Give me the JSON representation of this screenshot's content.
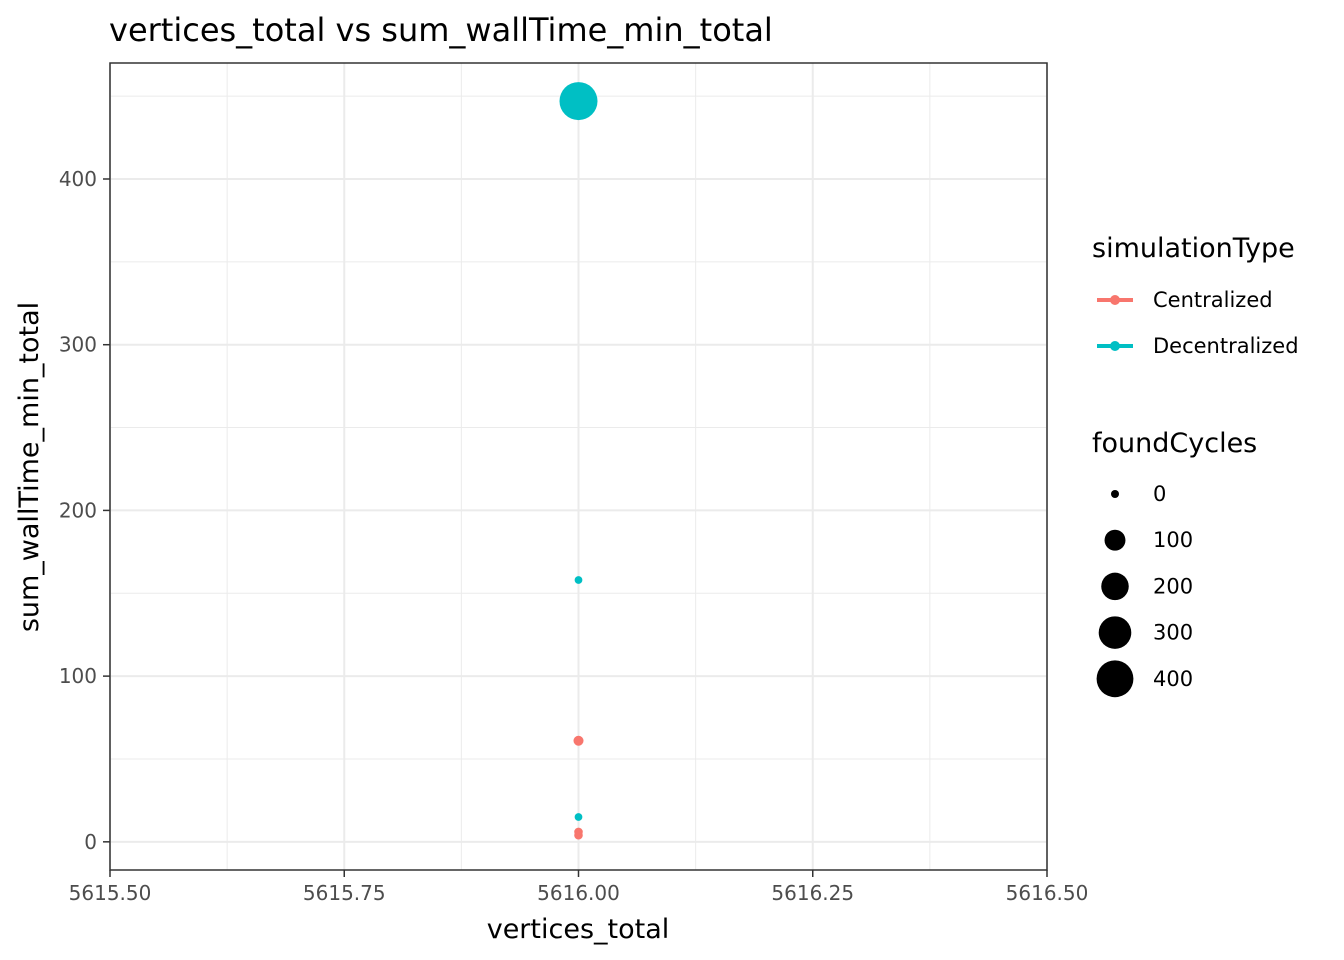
{
  "chart_data": {
    "type": "scatter",
    "title": "vertices_total  vs  sum_wallTime_min_total",
    "xlabel": "vertices_total",
    "ylabel": "sum_wallTime_min_total",
    "xlim": [
      5615.5,
      5616.5
    ],
    "ylim": [
      -17,
      470
    ],
    "x_ticks": [
      5615.5,
      5615.75,
      5616.0,
      5616.25,
      5616.5
    ],
    "x_tick_labels": [
      "5615.50",
      "5615.75",
      "5616.00",
      "5616.25",
      "5616.50"
    ],
    "y_ticks": [
      0,
      100,
      200,
      300,
      400
    ],
    "y_tick_labels": [
      "0",
      "100",
      "200",
      "300",
      "400"
    ],
    "grid": true,
    "legend_placement": "right",
    "color_legend": {
      "title": "simulationType",
      "entries": [
        {
          "label": "Centralized",
          "color": "#F8766D"
        },
        {
          "label": "Decentralized",
          "color": "#00BFC4"
        }
      ]
    },
    "size_legend": {
      "title": "foundCycles",
      "entries": [
        {
          "label": "0",
          "value": 0
        },
        {
          "label": "100",
          "value": 100
        },
        {
          "label": "200",
          "value": 200
        },
        {
          "label": "300",
          "value": 300
        },
        {
          "label": "400",
          "value": 400
        }
      ]
    },
    "series": [
      {
        "name": "Centralized",
        "color": "#F8766D",
        "points": [
          {
            "x": 5616.0,
            "y": 61,
            "size": 10
          },
          {
            "x": 5616.0,
            "y": 6,
            "size": 5
          },
          {
            "x": 5616.0,
            "y": 4,
            "size": 5
          }
        ]
      },
      {
        "name": "Decentralized",
        "color": "#00BFC4",
        "points": [
          {
            "x": 5616.0,
            "y": 447,
            "size": 430
          },
          {
            "x": 5616.0,
            "y": 158,
            "size": 3
          },
          {
            "x": 5616.0,
            "y": 15,
            "size": 3
          }
        ]
      }
    ]
  }
}
